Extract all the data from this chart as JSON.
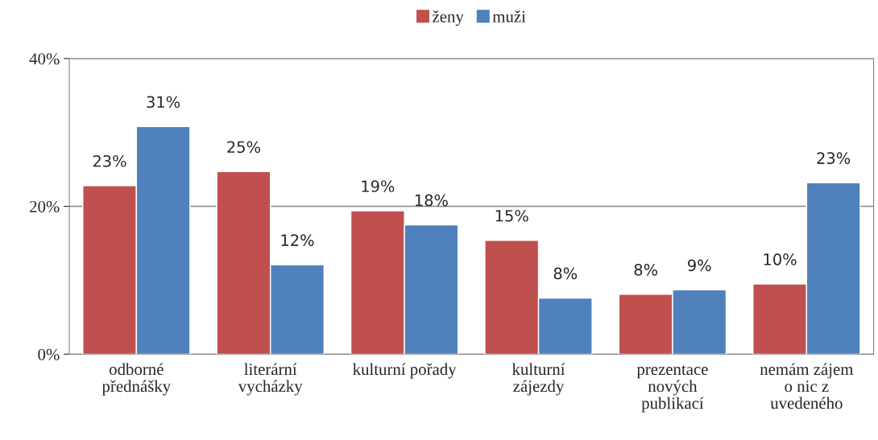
{
  "chart_data": {
    "type": "bar",
    "categories": [
      "odborné\npřednášky",
      "literární\nvycházky",
      "kulturní pořady",
      "kulturní\nzájezdy",
      "prezentace\nnových\npublikací",
      "nemám zájem\no nic z\nuvedeného"
    ],
    "series": [
      {
        "name": "ženy",
        "color": "#c0504d",
        "values": [
          22.8,
          24.7,
          19.4,
          15.4,
          8.1,
          9.5
        ],
        "value_labels": [
          "23%",
          "25%",
          "19%",
          "15%",
          "8%",
          "10%"
        ]
      },
      {
        "name": "muži",
        "color": "#4f81bd",
        "values": [
          30.8,
          12.1,
          17.5,
          7.6,
          8.7,
          23.2
        ],
        "value_labels": [
          "31%",
          "12%",
          "18%",
          "8%",
          "9%",
          "23%"
        ]
      }
    ],
    "ylim": [
      0,
      40
    ],
    "yticks": [
      {
        "value": 0,
        "label": "0%"
      },
      {
        "value": 20,
        "label": "20%"
      },
      {
        "value": 40,
        "label": "40%"
      }
    ],
    "grid": "y",
    "legend": "top"
  }
}
